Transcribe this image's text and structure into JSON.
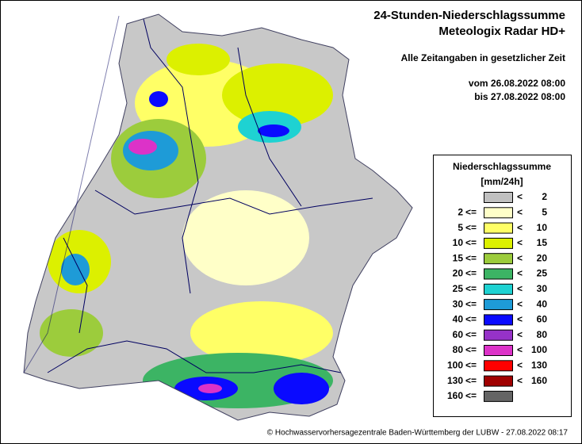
{
  "header": {
    "title": "24-Stunden-Niederschlagssumme",
    "subtitle": "Meteologix Radar HD+",
    "note": "Alle Zeitangaben in gesetzlicher Zeit",
    "from": "vom 26.08.2022 08:00",
    "to": "bis 27.08.2022 08:00"
  },
  "legend": {
    "title": "Niederschlagssumme",
    "unit": "[mm/24h]",
    "rows": [
      {
        "color": "#c0c0c0",
        "to_op": "<",
        "to": 2
      },
      {
        "from": 2,
        "from_op": "<=",
        "color": "#ffffc8",
        "to_op": "<",
        "to": 5
      },
      {
        "from": 5,
        "from_op": "<=",
        "color": "#ffff66",
        "to_op": "<",
        "to": 10
      },
      {
        "from": 10,
        "from_op": "<=",
        "color": "#dcf000",
        "to_op": "<",
        "to": 15
      },
      {
        "from": 15,
        "from_op": "<=",
        "color": "#9ccc3c",
        "to_op": "<",
        "to": 20
      },
      {
        "from": 20,
        "from_op": "<=",
        "color": "#3cb464",
        "to_op": "<",
        "to": 25
      },
      {
        "from": 25,
        "from_op": "<=",
        "color": "#1ed2d2",
        "to_op": "<",
        "to": 30
      },
      {
        "from": 30,
        "from_op": "<=",
        "color": "#1e9bd7",
        "to_op": "<",
        "to": 40
      },
      {
        "from": 40,
        "from_op": "<=",
        "color": "#0a0aff",
        "to_op": "<",
        "to": 60
      },
      {
        "from": 60,
        "from_op": "<=",
        "color": "#9632c8",
        "to_op": "<",
        "to": 80
      },
      {
        "from": 80,
        "from_op": "<=",
        "color": "#dc32c8",
        "to_op": "<",
        "to": 100
      },
      {
        "from": 100,
        "from_op": "<=",
        "color": "#ff0000",
        "to_op": "<",
        "to": 130
      },
      {
        "from": 130,
        "from_op": "<=",
        "color": "#a00000",
        "to_op": "<",
        "to": 160
      },
      {
        "from": 160,
        "from_op": "<=",
        "color": "#646464"
      }
    ]
  },
  "footer": {
    "copyright": "© Hochwasservorhersagezentrale Baden-Württemberg der LUBW - 27.08.2022 08:17"
  }
}
